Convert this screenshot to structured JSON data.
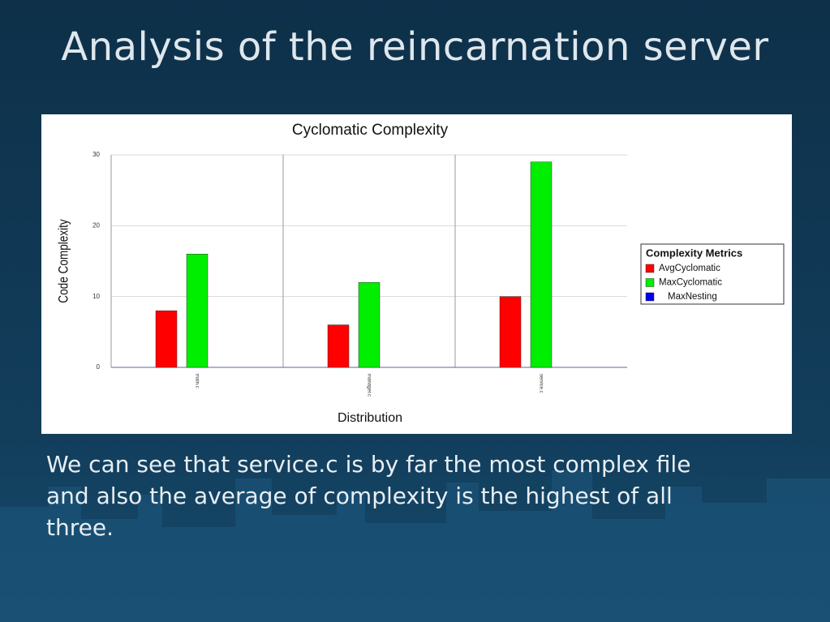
{
  "title": "Analysis of the reincarnation server",
  "body": [
    "We can see that service.c is by far the most complex file",
    "and also the average of complexity is the highest of all",
    "three."
  ],
  "chart_data": {
    "type": "bar",
    "title": "Cyclomatic Complexity",
    "ylabel": "Code Complexity",
    "xlabel": "Distribution",
    "categories": [
      "main.c",
      "manager.c",
      "service.c"
    ],
    "series": [
      {
        "name": "AvgCyclomatic",
        "color": "#ff0000",
        "values": [
          8,
          6,
          10
        ]
      },
      {
        "name": "MaxCyclomatic",
        "color": "#00ee00",
        "values": [
          16,
          12,
          29
        ]
      },
      {
        "name": "MaxNesting",
        "color": "#0000ee",
        "values": [
          0,
          0,
          0
        ]
      }
    ],
    "ylim": [
      0,
      30
    ],
    "yticks": [
      0,
      10,
      20,
      30
    ],
    "grid": true,
    "legend_title": "Complexity Metrics",
    "legend": "right"
  }
}
